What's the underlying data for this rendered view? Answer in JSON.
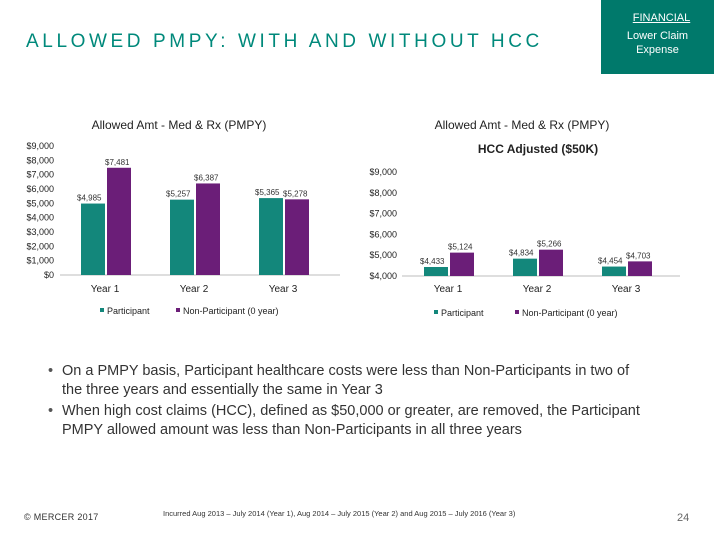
{
  "header": {
    "title": "ALLOWED PMPY: WITH AND WITHOUT HCC",
    "badge_category": "FINANCIAL",
    "badge_label": "Lower Claim Expense"
  },
  "colors": {
    "title": "#00897b",
    "badge_bg": "#00796b",
    "participant": "#13877b",
    "non_participant": "#6b1e78"
  },
  "chart_data": [
    {
      "type": "bar",
      "title": "Allowed Amt - Med & Rx (PMPY)",
      "subtitle": "",
      "categories": [
        "Year 1",
        "Year 2",
        "Year 3"
      ],
      "series": [
        {
          "name": "Participant",
          "values": [
            4985,
            5257,
            5365
          ],
          "labels": [
            "$4,985",
            "$5,257",
            "$5,365"
          ]
        },
        {
          "name": "Non-Participant (0 year)",
          "values": [
            7481,
            6387,
            5278
          ],
          "labels": [
            "$7,481",
            "$6,387",
            "$5,278"
          ]
        }
      ],
      "yticks": [
        "$9,000",
        "$8,000",
        "$7,000",
        "$6,000",
        "$5,000",
        "$4,000",
        "$3,000",
        "$2,000",
        "$1,000",
        "$0"
      ],
      "ylim": [
        0,
        9000
      ],
      "legend": "bottom"
    },
    {
      "type": "bar",
      "title": "Allowed Amt - Med & Rx (PMPY)",
      "subtitle": "HCC Adjusted ($50K)",
      "categories": [
        "Year 1",
        "Year 2",
        "Year 3"
      ],
      "series": [
        {
          "name": "Participant",
          "values": [
            4433,
            4834,
            4454
          ],
          "labels": [
            "$4,433",
            "$4,834",
            "$4,454"
          ]
        },
        {
          "name": "Non-Participant (0 year)",
          "values": [
            5124,
            5266,
            4703
          ],
          "labels": [
            "$5,124",
            "$5,266",
            "$4,703"
          ]
        }
      ],
      "yticks": [
        "$9,000",
        "$8,000",
        "$7,000",
        "$6,000",
        "$5,000",
        "$4,000"
      ],
      "ylim": [
        4000,
        9000
      ],
      "legend": "bottom"
    }
  ],
  "bullets": [
    "On a PMPY basis, Participant healthcare costs were less than Non-Participants in two of the three years and essentially the same in Year 3",
    "When high cost claims (HCC), defined as $50,000 or greater, are removed, the Participant PMPY allowed amount was less than Non-Participants in all three years"
  ],
  "footer": {
    "copyright": "© MERCER 2017",
    "footnote": "Incurred Aug 2013 – July 2014 (Year 1), Aug 2014 – July 2015 (Year 2) and Aug 2015 – July 2016 (Year 3)",
    "page_number": "24"
  }
}
